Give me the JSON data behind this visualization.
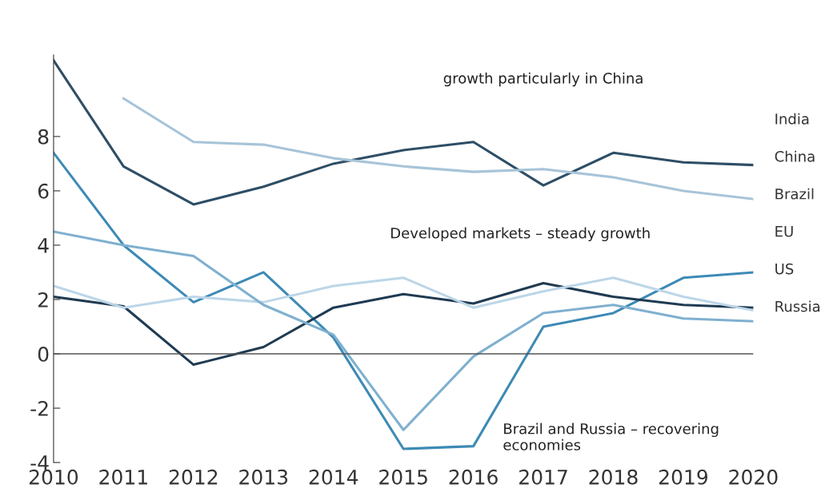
{
  "chart_data": {
    "type": "line",
    "categories": [
      "2010",
      "2011",
      "2012",
      "2013",
      "2014",
      "2015",
      "2016",
      "2017",
      "2018",
      "2019",
      "2020"
    ],
    "series": [
      {
        "name": "India",
        "color": "#2e4e66",
        "values": [
          10.8,
          6.9,
          5.5,
          6.15,
          7.0,
          7.5,
          7.8,
          6.2,
          7.4,
          7.05,
          6.95
        ]
      },
      {
        "name": "China",
        "color": "#a7c4d8",
        "values": [
          null,
          9.4,
          7.8,
          7.7,
          7.2,
          6.9,
          6.7,
          6.8,
          6.5,
          6.0,
          5.7
        ]
      },
      {
        "name": "Brazil",
        "color": "#3d8ab5",
        "values": [
          7.4,
          4.0,
          1.9,
          3.0,
          0.6,
          -3.5,
          -3.4,
          1.0,
          1.5,
          2.8,
          3.0
        ]
      },
      {
        "name": "EU",
        "color": "#1f3b52",
        "values": [
          2.1,
          1.75,
          -0.4,
          0.25,
          1.7,
          2.2,
          1.85,
          2.6,
          2.1,
          1.8,
          1.7
        ]
      },
      {
        "name": "US",
        "color": "#bcd6e8",
        "values": [
          2.5,
          1.7,
          2.1,
          1.9,
          2.5,
          2.8,
          1.7,
          2.3,
          2.8,
          2.1,
          1.6
        ]
      },
      {
        "name": "Russia",
        "color": "#7fb0cf",
        "values": [
          4.5,
          4.0,
          3.6,
          1.8,
          0.7,
          -2.8,
          -0.1,
          1.5,
          1.8,
          1.3,
          1.2
        ]
      }
    ],
    "ylim": [
      -4,
      11
    ],
    "yticks": [
      -4,
      -2,
      0,
      2,
      4,
      6,
      8
    ],
    "ref_lines": [
      {
        "axis": "y",
        "value": 0,
        "color": "#555555"
      }
    ],
    "annotations": [
      "growth particularly in China",
      "Developed markets – steady growth",
      "Brazil and Russia – recovering\neconomies"
    ],
    "grid": false,
    "legend": false,
    "marker": "none",
    "line_style": "solid"
  }
}
